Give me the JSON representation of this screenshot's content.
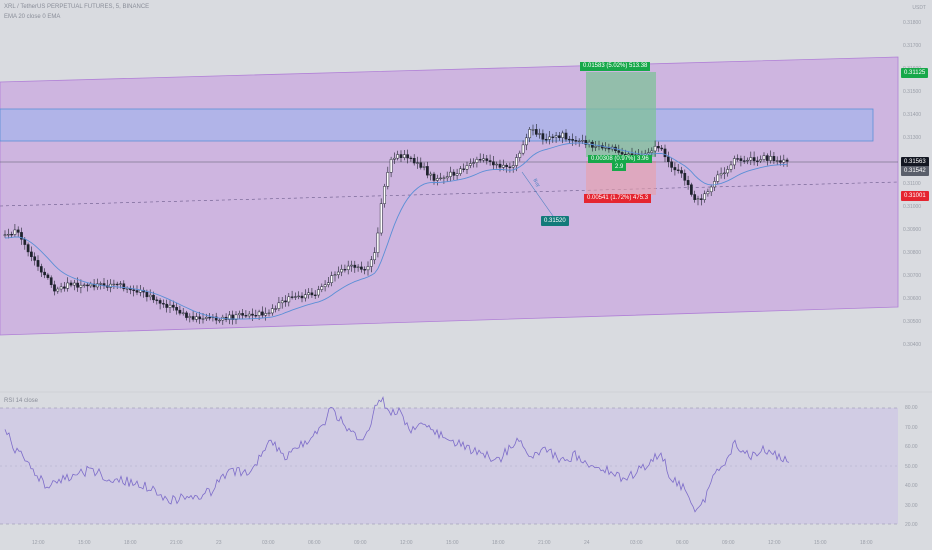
{
  "header": {
    "symbol_line": "XRL / TetherUS PERPETUAL FUTURES, 5, BINANCE",
    "indicator_line": "EMA 20 close 0 EMA"
  },
  "top_right_label": "USDT",
  "price_scale": {
    "ticks": [
      "0.31800",
      "0.31700",
      "0.31600",
      "0.31500",
      "0.31400",
      "0.31300",
      "0.31200",
      "0.31100",
      "0.31000",
      "0.30900",
      "0.30800",
      "0.30700",
      "0.30600",
      "0.30500",
      "0.30400"
    ]
  },
  "price_tags": {
    "target": "0.31125",
    "last": "0.31563",
    "ema": "0.31542",
    "stop": "0.31001",
    "entry_marker": "0.31520"
  },
  "position": {
    "target_label": "0.01583 (5.02%) 513.38",
    "entry_label": "0.00308 (0.97%) 3.96",
    "entry_sublabel": "2.9",
    "stop_label": "0.00541 (1.72%) 475.3",
    "buy_text": "Buy"
  },
  "rsi": {
    "title": "RSI 14 close",
    "ticks": [
      "80.00",
      "70.00",
      "60.00",
      "50.00",
      "40.00",
      "30.00",
      "20.00"
    ]
  },
  "time_axis": {
    "labels": [
      "12:00",
      "15:00",
      "18:00",
      "21:00",
      "23",
      "03:00",
      "06:00",
      "09:00",
      "12:00",
      "15:00",
      "18:00",
      "21:00",
      "24",
      "03:00",
      "06:00",
      "09:00",
      "12:00",
      "15:00",
      "18:00"
    ]
  },
  "colors": {
    "background": "#d9dbe0",
    "channel_fill": "#c9a8e0",
    "zone_fill": "#9fb4ec",
    "ema_line": "#5b8fd6",
    "profit": "#17a84a",
    "loss": "#e52530",
    "marker": "#137a7a",
    "rsi_line": "#7d6cc9"
  }
}
